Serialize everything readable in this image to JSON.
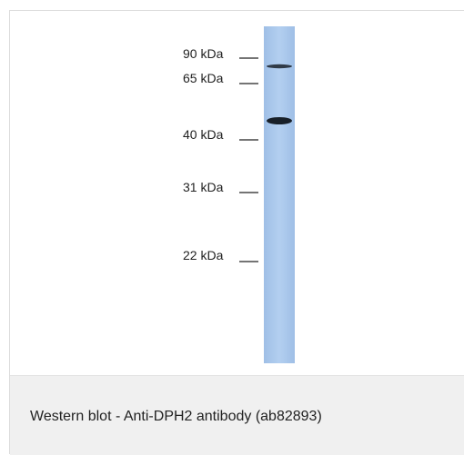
{
  "figure": {
    "markers": [
      {
        "label": "90 kDa",
        "kda": 90
      },
      {
        "label": "65 kDa",
        "kda": 65
      },
      {
        "label": "40 kDa",
        "kda": 40
      },
      {
        "label": "31 kDa",
        "kda": 31
      },
      {
        "label": "22 kDa",
        "kda": 22
      }
    ],
    "bands": [
      {
        "kda": 70,
        "intensity": 0.75
      },
      {
        "kda": 45,
        "intensity": 1.0
      }
    ],
    "lane_color": "#aac8ec",
    "band_color": "#10161e"
  },
  "caption": {
    "text": "Western blot - Anti-DPH2 antibody (ab82893)"
  }
}
